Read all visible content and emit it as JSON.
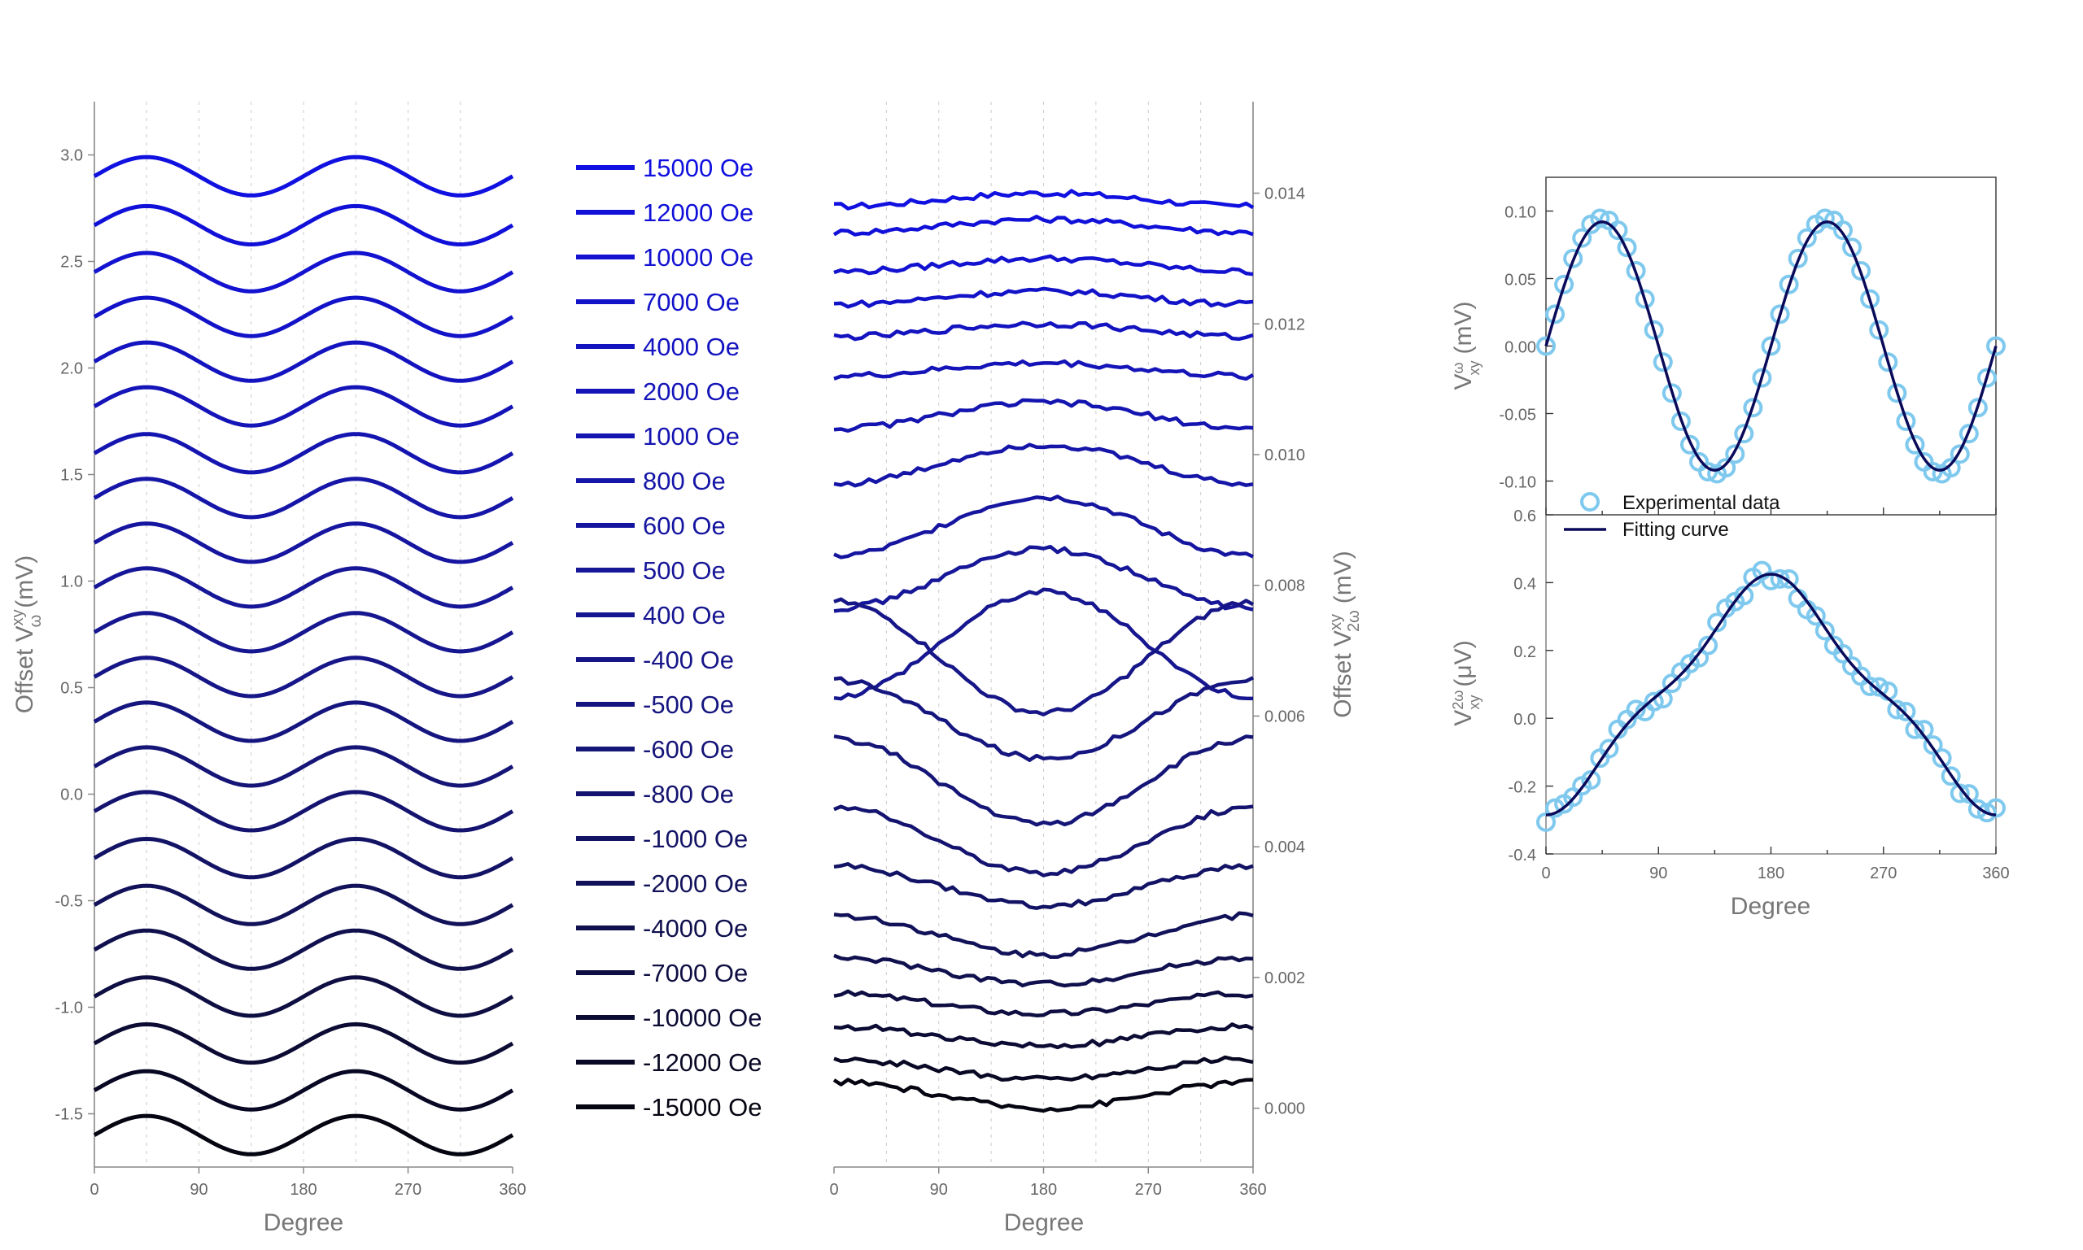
{
  "chart_data": [
    {
      "type": "line",
      "xlabel": "Degree",
      "ylabel": "Offset V",
      "ylabel_sup": "xy",
      "ylabel_sub": "ω",
      "ylabel_unit": "(mV)",
      "xlim": [
        0,
        360
      ],
      "ylim": [
        -1.75,
        3.25
      ],
      "xticks": [
        "0",
        "90",
        "180",
        "270",
        "360"
      ],
      "yticks": [
        "-1.5",
        "-1.0",
        "-0.5",
        "0.0",
        "0.5",
        "1.0",
        "1.5",
        "2.0",
        "2.5",
        "3.0"
      ],
      "ytick_values": [
        -1.5,
        -1.0,
        -0.5,
        0.0,
        0.5,
        1.0,
        1.5,
        2.0,
        2.5,
        3.0
      ],
      "amplitude": 0.09,
      "series": [
        {
          "name": "15000  Oe",
          "offset": 2.9,
          "color": "#1010e0"
        },
        {
          "name": "12000 Oe",
          "offset": 2.67,
          "color": "#1010d8"
        },
        {
          "name": "10000 Oe",
          "offset": 2.45,
          "color": "#1212d0"
        },
        {
          "name": "7000 Oe",
          "offset": 2.24,
          "color": "#1212c8"
        },
        {
          "name": "4000 Oe",
          "offset": 2.03,
          "color": "#1313c0"
        },
        {
          "name": "2000 Oe",
          "offset": 1.82,
          "color": "#1414b8"
        },
        {
          "name": "1000 Oe",
          "offset": 1.6,
          "color": "#1414b0"
        },
        {
          "name": "800 Oe",
          "offset": 1.39,
          "color": "#1515a8"
        },
        {
          "name": "600 Oe",
          "offset": 1.18,
          "color": "#1515a0"
        },
        {
          "name": "500 Oe",
          "offset": 0.97,
          "color": "#161698"
        },
        {
          "name": "400 Oe",
          "offset": 0.76,
          "color": "#161690"
        },
        {
          "name": "-400 Oe",
          "offset": 0.55,
          "color": "#161688"
        },
        {
          "name": "-500 Oe",
          "offset": 0.34,
          "color": "#151580"
        },
        {
          "name": "-600 Oe",
          "offset": 0.13,
          "color": "#151578"
        },
        {
          "name": "-800 Oe",
          "offset": -0.08,
          "color": "#141470"
        },
        {
          "name": "-1000 Oe",
          "offset": -0.3,
          "color": "#131366"
        },
        {
          "name": "-2000 Oe",
          "offset": -0.52,
          "color": "#12125a"
        },
        {
          "name": "-4000 Oe",
          "offset": -0.73,
          "color": "#10104e"
        },
        {
          "name": "-7000 Oe",
          "offset": -0.95,
          "color": "#0e0e42"
        },
        {
          "name": "-10000 Oe",
          "offset": -1.17,
          "color": "#0b0b34"
        },
        {
          "name": "-12000 Oe",
          "offset": -1.39,
          "color": "#080824"
        },
        {
          "name": "-15000 Oe",
          "offset": -1.6,
          "color": "#050512"
        }
      ]
    },
    {
      "type": "line",
      "xlabel": "Degree",
      "ylabel": "Offset V",
      "ylabel_sup": "xy",
      "ylabel_sub": "2ω",
      "ylabel_unit": "(mV)",
      "xlim": [
        0,
        360
      ],
      "ylim": [
        -0.0009,
        0.0154
      ],
      "xticks": [
        "0",
        "90",
        "180",
        "270",
        "360"
      ],
      "yticks": [
        "0.000",
        "0.002",
        "0.004",
        "0.006",
        "0.008",
        "0.010",
        "0.012",
        "0.014"
      ],
      "ytick_values": [
        0.0,
        0.002,
        0.004,
        0.006,
        0.008,
        0.01,
        0.012,
        0.014
      ],
      "series": [
        {
          "offset": 0.0139,
          "amplitude": 0.0001,
          "color": "#1010e0"
        },
        {
          "offset": 0.0135,
          "amplitude": 0.0001,
          "color": "#1010d8"
        },
        {
          "offset": 0.0129,
          "amplitude": 0.0001,
          "color": "#1212d0"
        },
        {
          "offset": 0.0124,
          "amplitude": 0.0001,
          "color": "#1212c8"
        },
        {
          "offset": 0.0119,
          "amplitude": 0.0001,
          "color": "#1313c0"
        },
        {
          "offset": 0.0113,
          "amplitude": 0.0001,
          "color": "#1414b8"
        },
        {
          "offset": 0.0106,
          "amplitude": 0.0002,
          "color": "#1414b0"
        },
        {
          "offset": 0.00985,
          "amplitude": 0.0003,
          "color": "#1515a8"
        },
        {
          "offset": 0.0089,
          "amplitude": 0.00045,
          "color": "#1515a0"
        },
        {
          "offset": 0.0081,
          "amplitude": 0.00045,
          "color": "#161698"
        },
        {
          "offset": 0.0071,
          "amplitude": 0.0008,
          "color": "#161690"
        },
        {
          "offset": 0.0069,
          "amplitude": -0.00085,
          "color": "#161688"
        },
        {
          "offset": 0.00595,
          "amplitude": -0.0006,
          "color": "#151580"
        },
        {
          "offset": 0.005,
          "amplitude": -0.00065,
          "color": "#151578"
        },
        {
          "offset": 0.0041,
          "amplitude": -0.0005,
          "color": "#141470"
        },
        {
          "offset": 0.0034,
          "amplitude": -0.0003,
          "color": "#131366"
        },
        {
          "offset": 0.00265,
          "amplitude": -0.0003,
          "color": "#12125a"
        },
        {
          "offset": 0.0021,
          "amplitude": -0.0002,
          "color": "#10104e"
        },
        {
          "offset": 0.0016,
          "amplitude": -0.00015,
          "color": "#0e0e42"
        },
        {
          "offset": 0.0011,
          "amplitude": -0.00015,
          "color": "#0b0b34"
        },
        {
          "offset": 0.0006,
          "amplitude": -0.00015,
          "color": "#080824"
        },
        {
          "offset": 0.0002,
          "amplitude": -0.0002,
          "color": "#050512"
        }
      ]
    },
    {
      "type": "scatter",
      "xlabel": "",
      "ylabel": "V",
      "ylabel_sup": "ω",
      "ylabel_sub": "xy",
      "ylabel_unit": "(mV)",
      "xlim": [
        0,
        360
      ],
      "ylim": [
        -0.125,
        0.125
      ],
      "yticks": [
        "-0.10",
        "-0.05",
        "0.00",
        "0.05",
        "0.10"
      ],
      "ytick_values": [
        -0.1,
        -0.05,
        0.0,
        0.05,
        0.1
      ],
      "fit_amplitude": 0.092,
      "fit_phase_deg": 45,
      "series": [
        {
          "name": "Experimental data",
          "marker": "open-circle",
          "color": "#7fc9ee"
        },
        {
          "name": "Fitting curve",
          "color": "#0a0a5a"
        }
      ]
    },
    {
      "type": "scatter",
      "xlabel": "Degree",
      "ylabel": "V",
      "ylabel_sup": "2ω",
      "ylabel_sub": "xy",
      "ylabel_unit": "(μV)",
      "xlim": [
        0,
        360
      ],
      "ylim": [
        -0.4,
        0.6
      ],
      "xticks": [
        "0",
        "90",
        "180",
        "270",
        "360"
      ],
      "yticks": [
        "-0.4",
        "-0.2",
        "0.0",
        "0.2",
        "0.4",
        "0.6"
      ],
      "ytick_values": [
        -0.4,
        -0.2,
        0.0,
        0.2,
        0.4,
        0.6
      ],
      "fit_terms": {
        "a1": -0.31,
        "a3": -0.045,
        "offset": 0.07
      },
      "series": [
        {
          "name": "Experimental data",
          "marker": "open-circle",
          "color": "#7fc9ee"
        },
        {
          "name": "Fitting curve",
          "color": "#0a0a5a"
        }
      ]
    }
  ]
}
